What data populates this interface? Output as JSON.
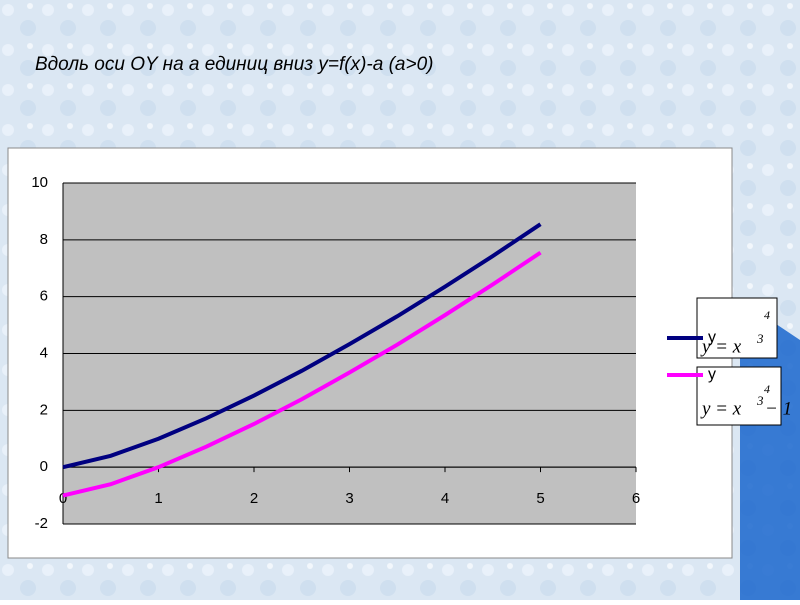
{
  "chart_data": {
    "type": "line",
    "title": "Вдоль оси OY на а  единиц вниз y=f(x)-a (a>0)",
    "x": [
      0,
      0.5,
      1,
      1.5,
      2,
      2.5,
      3,
      3.5,
      4,
      4.5,
      5
    ],
    "series": [
      {
        "name": "y",
        "color": "#000080",
        "values": [
          0,
          0.4,
          1,
          1.72,
          2.52,
          3.39,
          4.33,
          5.31,
          6.35,
          7.43,
          8.55
        ]
      },
      {
        "name": "y",
        "color": "#ff00ff",
        "values": [
          -1,
          -0.6,
          0,
          0.72,
          1.52,
          2.39,
          3.33,
          4.31,
          5.35,
          6.43,
          7.55
        ]
      }
    ],
    "xlim": [
      0,
      6
    ],
    "xticks": [
      0,
      1,
      2,
      3,
      4,
      5,
      6
    ],
    "ylim": [
      -2,
      10
    ],
    "yticks": [
      -2,
      0,
      2,
      4,
      6,
      8,
      10
    ],
    "grid": true,
    "legend": "right",
    "formulas": [
      {
        "lhs": "y = x",
        "exp_top": "4",
        "exp": "3",
        "tail": ""
      },
      {
        "lhs": "y = x",
        "exp_top": "4",
        "exp": "3",
        "tail": " − 1"
      }
    ]
  }
}
